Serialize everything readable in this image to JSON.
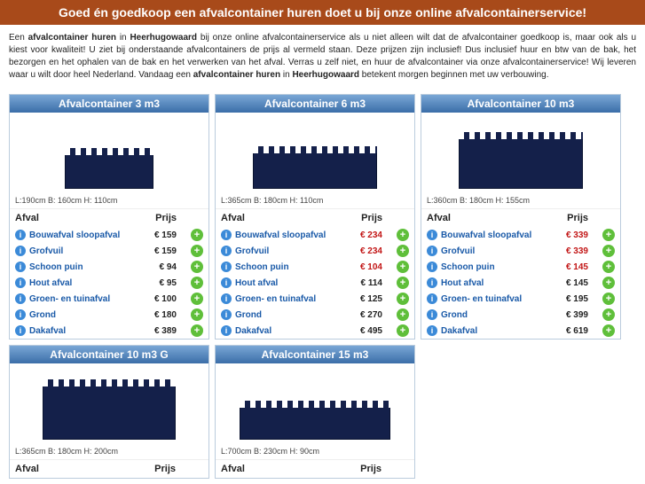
{
  "header": "Goed én goedkoop een afvalcontainer huren doet u bij onze online afvalcontainerservice!",
  "intro_parts": {
    "t1": "Een ",
    "b1": "afvalcontainer huren",
    "t2": " in ",
    "b2": "Heerhugowaard",
    "t3": " bij onze online afvalcontainerservice als u niet alleen wilt dat de afvalcontainer goedkoop is, maar ook als u kiest voor kwaliteit! U ziet bij onderstaande afvalcontainers de prijs al vermeld staan. Deze prijzen zijn inclusief! Dus inclusief huur en btw van de bak, het bezorgen en het ophalen van de bak en het verwerken van het afval. Verras u zelf niet, en huur de afvalcontainer via onze afvalcontainerservice! Wij leveren waar u wilt door heel Nederland. Vandaag een ",
    "b3": "afvalcontainer huren",
    "t4": " in ",
    "b4": "Heerhugowaard",
    "t5": " betekent morgen beginnen met uw verbouwing."
  },
  "table_headers": {
    "afval": "Afval",
    "prijs": "Prijs"
  },
  "bin_style": {
    "w": 110,
    "h": 50
  },
  "cards": [
    {
      "title": "Afvalcontainer 3 m3",
      "dims": "L:190cm B: 160cm H: 110cm",
      "bin_style": {
        "w": 100,
        "h": 40
      },
      "rows": [
        {
          "name": "Bouwafval sloopafval",
          "price": "€ 159",
          "red": false
        },
        {
          "name": "Grofvuil",
          "price": "€ 159",
          "red": false
        },
        {
          "name": "Schoon puin",
          "price": "€ 94",
          "red": false
        },
        {
          "name": "Hout afval",
          "price": "€ 95",
          "red": false
        },
        {
          "name": "Groen- en tuinafval",
          "price": "€ 100",
          "red": false
        },
        {
          "name": "Grond",
          "price": "€ 180",
          "red": false
        },
        {
          "name": "Dakafval",
          "price": "€ 389",
          "red": false
        }
      ]
    },
    {
      "title": "Afvalcontainer 6 m3",
      "dims": "L:365cm B: 180cm H: 110cm",
      "bin_style": {
        "w": 140,
        "h": 42
      },
      "rows": [
        {
          "name": "Bouwafval sloopafval",
          "price": "€ 234",
          "red": true
        },
        {
          "name": "Grofvuil",
          "price": "€ 234",
          "red": true
        },
        {
          "name": "Schoon puin",
          "price": "€ 104",
          "red": true
        },
        {
          "name": "Hout afval",
          "price": "€ 114",
          "red": false
        },
        {
          "name": "Groen- en tuinafval",
          "price": "€ 125",
          "red": false
        },
        {
          "name": "Grond",
          "price": "€ 270",
          "red": false
        },
        {
          "name": "Dakafval",
          "price": "€ 495",
          "red": false
        }
      ]
    },
    {
      "title": "Afvalcontainer 10 m3",
      "dims": "L:360cm B: 180cm H: 155cm",
      "bin_style": {
        "w": 140,
        "h": 58
      },
      "rows": [
        {
          "name": "Bouwafval sloopafval",
          "price": "€ 339",
          "red": true
        },
        {
          "name": "Grofvuil",
          "price": "€ 339",
          "red": true
        },
        {
          "name": "Schoon puin",
          "price": "€ 145",
          "red": true
        },
        {
          "name": "Hout afval",
          "price": "€ 145",
          "red": false
        },
        {
          "name": "Groen- en tuinafval",
          "price": "€ 195",
          "red": false
        },
        {
          "name": "Grond",
          "price": "€ 399",
          "red": false
        },
        {
          "name": "Dakafval",
          "price": "€ 619",
          "red": false
        }
      ]
    },
    {
      "title": "Afvalcontainer 10 m3 G",
      "dims": "L:365cm B: 180cm H: 200cm",
      "bin_style": {
        "w": 150,
        "h": 62
      },
      "rows": []
    },
    {
      "title": "Afvalcontainer 15 m3",
      "dims": "L:700cm B: 230cm H: 90cm",
      "bin_style": {
        "w": 170,
        "h": 38
      },
      "rows": []
    }
  ]
}
